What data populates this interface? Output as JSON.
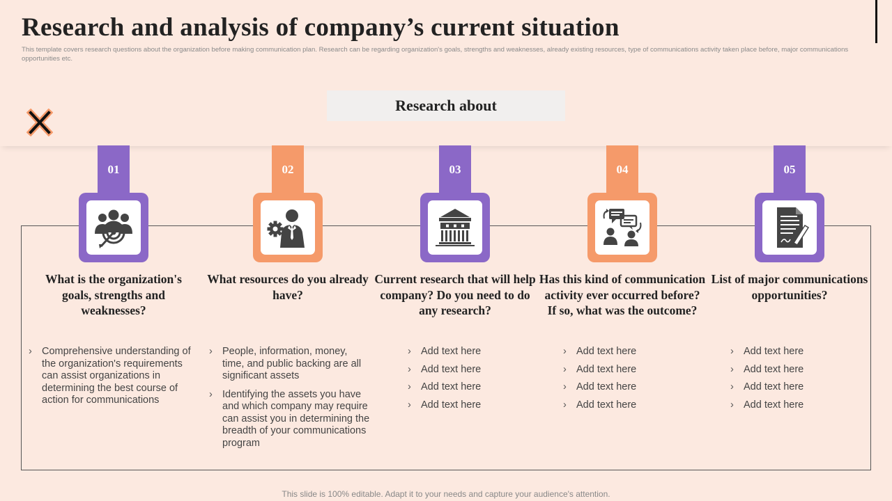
{
  "header": {
    "title": "Research and analysis of company’s current situation",
    "subtitle": "This template covers research questions about the organization before making communication plan. Research can be regarding organization's goals, strengths and weaknesses, already existing resources, type of communications activity taken place before, major communications opportunities etc."
  },
  "research_label": "Research about",
  "steps": [
    {
      "number": "01",
      "icon": "target-team-icon",
      "question": "What is the organization's goals, strengths and weaknesses?",
      "bullets": [
        "Comprehensive understanding of the organization's requirements can assist organizations in determining the best course of action for communications"
      ]
    },
    {
      "number": "02",
      "icon": "businessman-gear-icon",
      "question": "What resources do you already have?",
      "bullets": [
        "People, information, money, time, and public backing are all significant assets",
        "Identifying the assets you have and which company may require can assist you in determining the breadth of your communications program"
      ]
    },
    {
      "number": "03",
      "icon": "bank-building-icon",
      "question": "Current research that will help company? Do you need to do any research?",
      "bullets": [
        "Add text here",
        "Add text here",
        "Add text here",
        "Add text here"
      ]
    },
    {
      "number": "04",
      "icon": "conversation-icon",
      "question": "Has this kind of communication activity ever occurred before? If so, what was the outcome?",
      "bullets": [
        "Add text here",
        "Add text here",
        "Add text here",
        "Add text here"
      ]
    },
    {
      "number": "05",
      "icon": "document-signature-icon",
      "question": "List of major communications opportunities?",
      "bullets": [
        "Add text here",
        "Add text here",
        "Add text here",
        "Add text here"
      ]
    }
  ],
  "footer": "This slide is 100% editable. Adapt it to your needs and capture your audience's attention.",
  "colors": {
    "purple": "#8b68c7",
    "orange": "#f59a6a",
    "background": "#fce9e0"
  }
}
